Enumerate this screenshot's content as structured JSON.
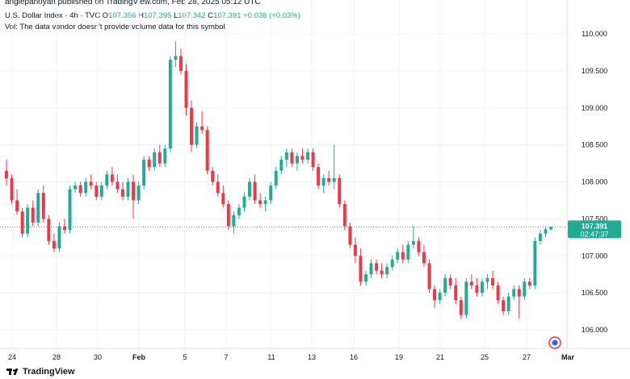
{
  "header": {
    "published": "angiepanoyan published on TradingView.com, Feb 28, 2025 05:12 UTC",
    "symbol": "U.S. Dollar Index · 4h · TVC",
    "o_label": "O",
    "o": "107.356",
    "h_label": "H",
    "h": "107.395",
    "l_label": "L",
    "l": "107.342",
    "c_label": "C",
    "c": "107.391",
    "change": "+0.036 (+0.03%)",
    "vol_note": "Vol: The data vendor doesn't provide volume data for this symbol."
  },
  "price_tag": {
    "price": "107.391",
    "countdown": "02:47:37"
  },
  "footer": {
    "brand": "TradingView"
  },
  "colors": {
    "up": "#22ab94",
    "down": "#f23645",
    "grid": "#f0f3fa",
    "tag": "#22ab94"
  },
  "chart_data": {
    "type": "candlestick",
    "y_ticks": [
      "110.000",
      "109.500",
      "109.000",
      "108.500",
      "108.000",
      "107.500",
      "107.000",
      "106.500",
      "106.000"
    ],
    "x_ticks": [
      "24",
      "28",
      "30",
      "Feb",
      "5",
      "7",
      "11",
      "13",
      "16",
      "19",
      "21",
      "25",
      "27",
      "Mar"
    ],
    "ylim": [
      105.75,
      110.15
    ],
    "last_price": 107.391,
    "grid": true,
    "candles": [
      [
        108.15,
        108.3,
        107.95,
        108.05
      ],
      [
        108.05,
        108.1,
        107.7,
        107.75
      ],
      [
        107.75,
        107.9,
        107.55,
        107.6
      ],
      [
        107.6,
        107.65,
        107.25,
        107.3
      ],
      [
        107.3,
        107.7,
        107.25,
        107.65
      ],
      [
        107.65,
        107.75,
        107.4,
        107.45
      ],
      [
        107.45,
        107.9,
        107.4,
        107.85
      ],
      [
        107.85,
        107.95,
        107.45,
        107.5
      ],
      [
        107.5,
        107.55,
        107.15,
        107.2
      ],
      [
        107.2,
        107.3,
        107.05,
        107.1
      ],
      [
        107.1,
        107.45,
        107.05,
        107.4
      ],
      [
        107.4,
        107.5,
        107.3,
        107.35
      ],
      [
        107.35,
        107.95,
        107.3,
        107.9
      ],
      [
        107.9,
        108.0,
        107.85,
        107.95
      ],
      [
        107.95,
        108.0,
        107.8,
        107.85
      ],
      [
        107.85,
        108.05,
        107.8,
        108.0
      ],
      [
        108.0,
        108.1,
        107.9,
        107.95
      ],
      [
        107.95,
        108.0,
        107.75,
        107.8
      ],
      [
        107.8,
        108.0,
        107.75,
        107.95
      ],
      [
        107.95,
        108.15,
        107.9,
        108.1
      ],
      [
        108.1,
        108.2,
        107.95,
        108.0
      ],
      [
        108.0,
        108.1,
        107.85,
        107.9
      ],
      [
        107.9,
        108.0,
        107.75,
        107.8
      ],
      [
        107.8,
        108.05,
        107.75,
        108.0
      ],
      [
        108.0,
        108.1,
        107.5,
        107.75
      ],
      [
        107.75,
        108.0,
        107.7,
        107.95
      ],
      [
        107.95,
        108.35,
        107.9,
        108.3
      ],
      [
        108.3,
        108.35,
        108.15,
        108.2
      ],
      [
        108.2,
        108.45,
        108.15,
        108.4
      ],
      [
        108.4,
        108.5,
        108.2,
        108.25
      ],
      [
        108.25,
        108.5,
        108.2,
        108.45
      ],
      [
        108.45,
        109.7,
        108.4,
        109.65
      ],
      [
        109.65,
        109.9,
        109.55,
        109.7
      ],
      [
        109.7,
        109.8,
        109.45,
        109.5
      ],
      [
        109.5,
        109.6,
        108.9,
        109.0
      ],
      [
        109.0,
        109.1,
        108.4,
        108.5
      ],
      [
        108.5,
        108.8,
        108.45,
        108.75
      ],
      [
        108.75,
        108.95,
        108.65,
        108.7
      ],
      [
        108.7,
        108.75,
        108.1,
        108.15
      ],
      [
        108.15,
        108.2,
        107.95,
        108.0
      ],
      [
        108.0,
        108.1,
        107.8,
        107.85
      ],
      [
        107.85,
        107.95,
        107.65,
        107.7
      ],
      [
        107.7,
        107.75,
        107.35,
        107.4
      ],
      [
        107.4,
        107.6,
        107.3,
        107.55
      ],
      [
        107.55,
        107.7,
        107.5,
        107.65
      ],
      [
        107.65,
        107.85,
        107.6,
        107.8
      ],
      [
        107.8,
        108.05,
        107.75,
        108.0
      ],
      [
        108.0,
        108.1,
        107.7,
        107.75
      ],
      [
        107.75,
        107.85,
        107.65,
        107.7
      ],
      [
        107.7,
        107.8,
        107.6,
        107.75
      ],
      [
        107.75,
        108.0,
        107.7,
        107.95
      ],
      [
        107.95,
        108.2,
        107.9,
        108.15
      ],
      [
        108.15,
        108.35,
        108.1,
        108.3
      ],
      [
        108.3,
        108.45,
        108.2,
        108.4
      ],
      [
        108.4,
        108.45,
        108.2,
        108.25
      ],
      [
        108.25,
        108.4,
        108.15,
        108.35
      ],
      [
        108.35,
        108.45,
        108.25,
        108.3
      ],
      [
        108.3,
        108.45,
        108.25,
        108.4
      ],
      [
        108.4,
        108.45,
        108.15,
        108.2
      ],
      [
        108.2,
        108.25,
        107.9,
        107.95
      ],
      [
        107.95,
        108.1,
        107.85,
        108.05
      ],
      [
        108.05,
        108.15,
        107.95,
        108.0
      ],
      [
        108.0,
        108.5,
        107.9,
        108.05
      ],
      [
        108.05,
        108.1,
        107.65,
        107.7
      ],
      [
        107.7,
        107.75,
        107.35,
        107.4
      ],
      [
        107.4,
        107.45,
        107.1,
        107.15
      ],
      [
        107.15,
        107.25,
        106.9,
        107.0
      ],
      [
        107.0,
        107.1,
        106.6,
        106.65
      ],
      [
        106.65,
        106.8,
        106.6,
        106.75
      ],
      [
        106.75,
        106.95,
        106.7,
        106.9
      ],
      [
        106.9,
        106.95,
        106.75,
        106.8
      ],
      [
        106.8,
        106.9,
        106.7,
        106.75
      ],
      [
        106.75,
        106.9,
        106.7,
        106.85
      ],
      [
        106.85,
        107.0,
        106.8,
        106.95
      ],
      [
        106.95,
        107.1,
        106.9,
        107.05
      ],
      [
        107.05,
        107.15,
        106.9,
        106.95
      ],
      [
        106.95,
        107.2,
        106.9,
        107.15
      ],
      [
        107.15,
        107.4,
        107.1,
        107.2
      ],
      [
        107.2,
        107.25,
        107.0,
        107.05
      ],
      [
        107.05,
        107.15,
        106.85,
        106.9
      ],
      [
        106.9,
        106.95,
        106.5,
        106.55
      ],
      [
        106.55,
        106.6,
        106.3,
        106.4
      ],
      [
        106.4,
        106.55,
        106.35,
        106.5
      ],
      [
        106.5,
        106.75,
        106.45,
        106.7
      ],
      [
        106.7,
        106.75,
        106.55,
        106.6
      ],
      [
        106.6,
        106.7,
        106.35,
        106.4
      ],
      [
        106.4,
        106.45,
        106.15,
        106.2
      ],
      [
        106.2,
        106.7,
        106.15,
        106.65
      ],
      [
        106.65,
        106.75,
        106.55,
        106.6
      ],
      [
        106.6,
        106.7,
        106.45,
        106.5
      ],
      [
        106.5,
        106.7,
        106.45,
        106.65
      ],
      [
        106.65,
        106.75,
        106.55,
        106.7
      ],
      [
        106.7,
        106.8,
        106.55,
        106.6
      ],
      [
        106.6,
        106.65,
        106.35,
        106.4
      ],
      [
        106.4,
        106.45,
        106.2,
        106.25
      ],
      [
        106.25,
        106.5,
        106.2,
        106.45
      ],
      [
        106.45,
        106.6,
        106.4,
        106.55
      ],
      [
        106.55,
        106.6,
        106.15,
        106.45
      ],
      [
        106.45,
        106.7,
        106.4,
        106.65
      ],
      [
        106.65,
        106.7,
        106.55,
        106.6
      ],
      [
        106.6,
        107.25,
        106.55,
        107.2
      ],
      [
        107.2,
        107.35,
        107.15,
        107.3
      ],
      [
        107.3,
        107.4,
        107.25,
        107.36
      ],
      [
        107.36,
        107.4,
        107.34,
        107.39
      ]
    ]
  }
}
